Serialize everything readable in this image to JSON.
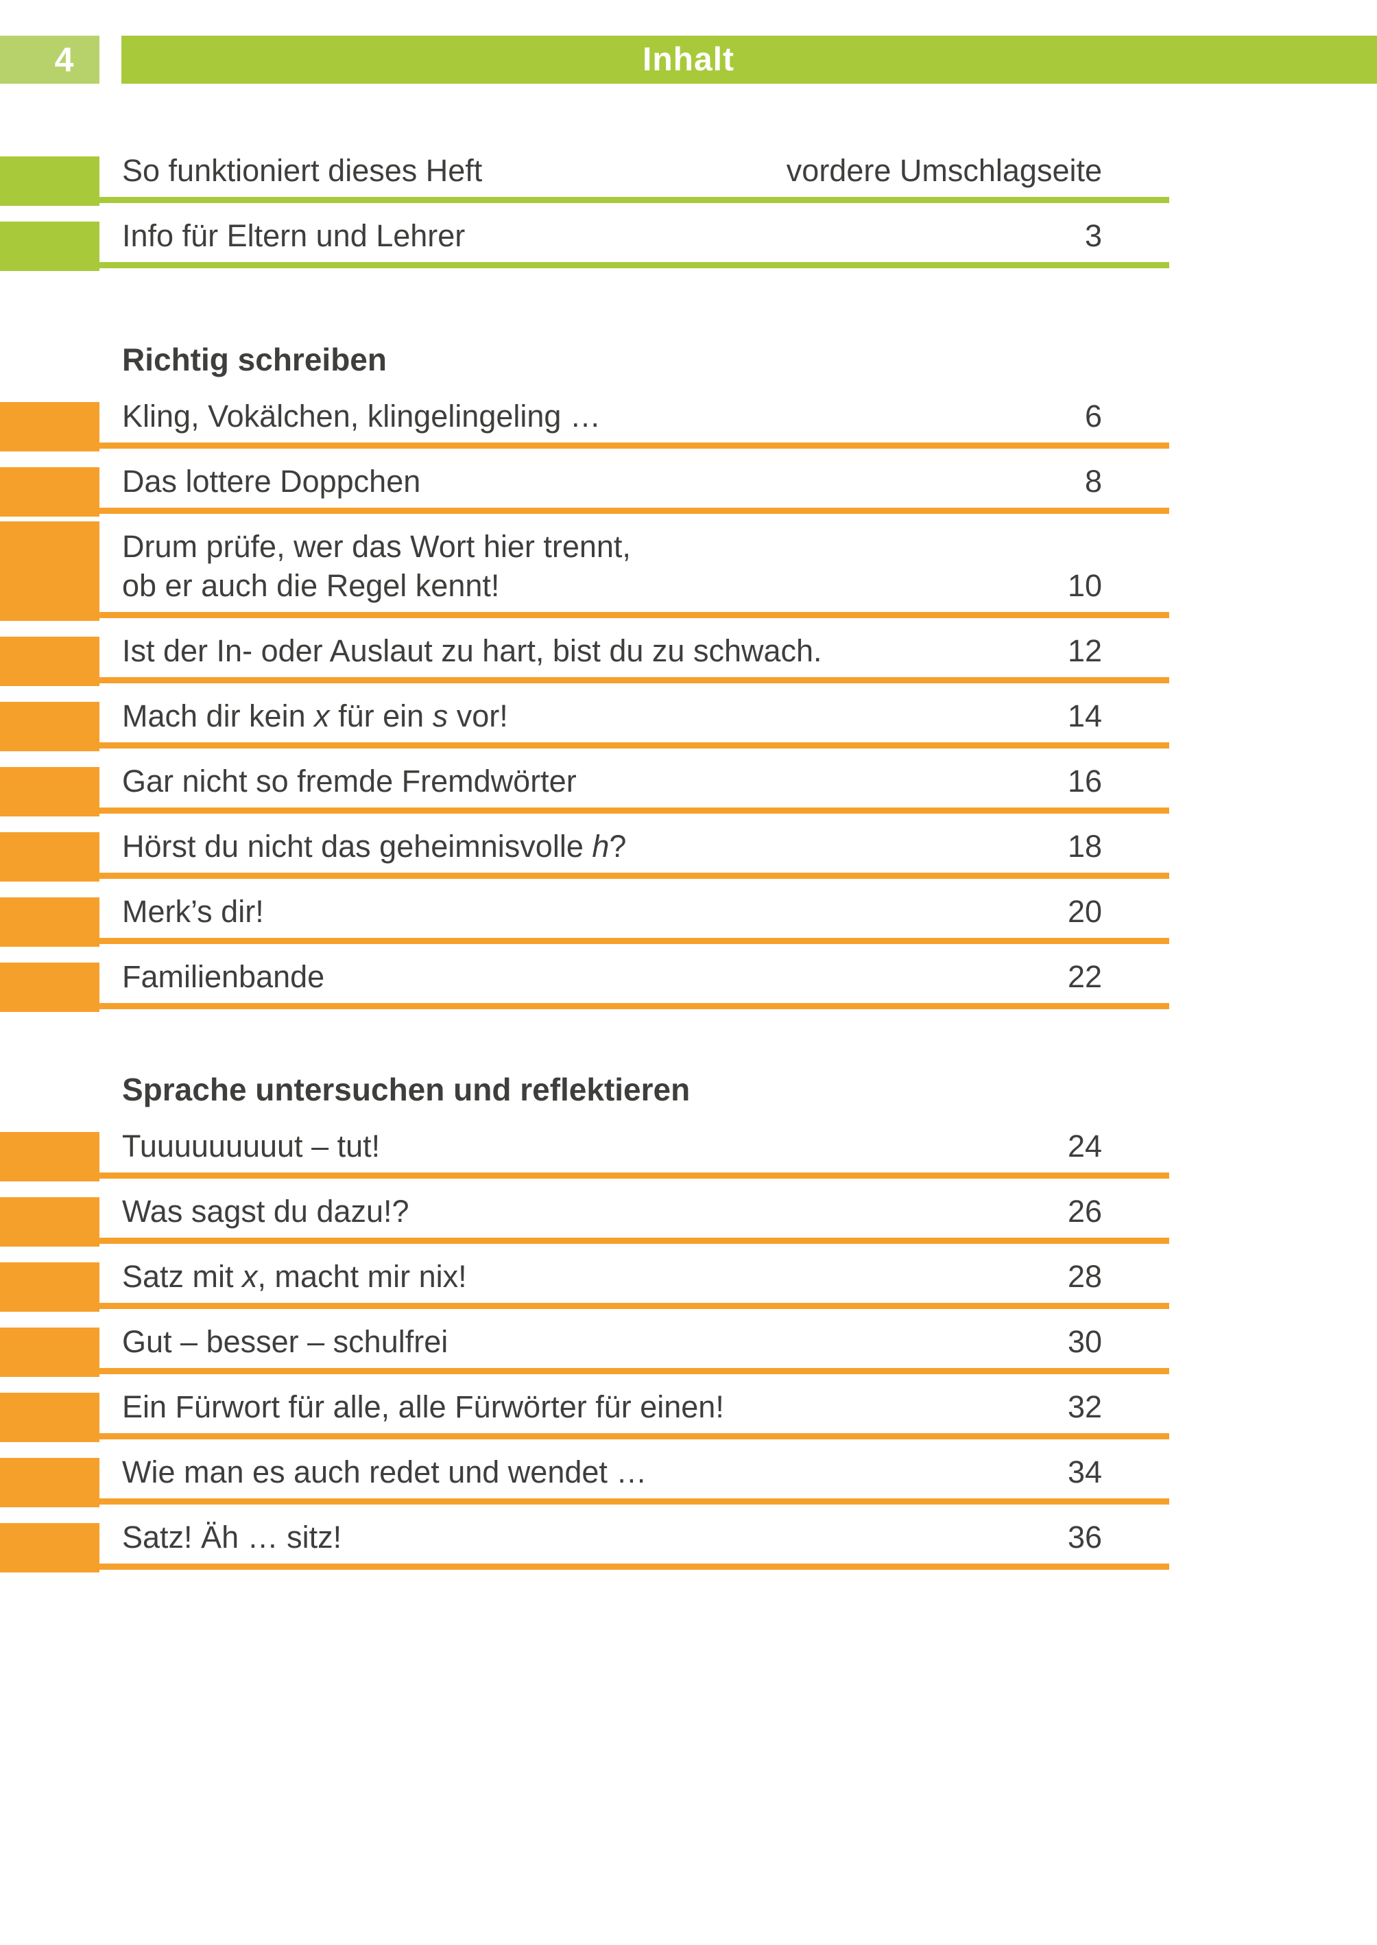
{
  "header": {
    "page_number": "4",
    "title": "Inhalt"
  },
  "colors": {
    "green": "#A8C93A",
    "light_green": "#B7D26A",
    "orange": "#F6A02C",
    "text": "#3E3E3C"
  },
  "toc": {
    "front_rows": [
      {
        "marker": "green",
        "lines": [
          [
            {
              "t": "So funktioniert dieses Heft"
            }
          ]
        ],
        "page": "vordere Umschlagseite"
      },
      {
        "marker": "green",
        "lines": [
          [
            {
              "t": "Info für Eltern und Lehrer"
            }
          ]
        ],
        "page": "3"
      }
    ],
    "sections": [
      {
        "heading": "Richtig schreiben",
        "rows": [
          {
            "marker": "orange",
            "lines": [
              [
                {
                  "t": "Kling, Vokälchen, klingelingeling …"
                }
              ]
            ],
            "page": "6"
          },
          {
            "marker": "orange",
            "lines": [
              [
                {
                  "t": "Das lottere Doppchen"
                }
              ]
            ],
            "page": "8"
          },
          {
            "marker": "orange",
            "lines": [
              [
                {
                  "t": "Drum prüfe, wer das Wort hier trennt,"
                }
              ],
              [
                {
                  "t": "ob er auch die Regel kennt!"
                }
              ]
            ],
            "page": "10"
          },
          {
            "marker": "orange",
            "lines": [
              [
                {
                  "t": "Ist der In- oder Auslaut zu hart, bist du zu schwach."
                }
              ]
            ],
            "page": "12"
          },
          {
            "marker": "orange",
            "lines": [
              [
                {
                  "t": "Mach dir kein "
                },
                {
                  "t": "x",
                  "i": true
                },
                {
                  "t": " für ein "
                },
                {
                  "t": "s",
                  "i": true
                },
                {
                  "t": " vor!"
                }
              ]
            ],
            "page": "14"
          },
          {
            "marker": "orange",
            "lines": [
              [
                {
                  "t": "Gar nicht so fremde Fremdwörter"
                }
              ]
            ],
            "page": "16"
          },
          {
            "marker": "orange",
            "lines": [
              [
                {
                  "t": "Hörst du nicht das geheimnisvolle "
                },
                {
                  "t": "h",
                  "i": true
                },
                {
                  "t": "?"
                }
              ]
            ],
            "page": "18"
          },
          {
            "marker": "orange",
            "lines": [
              [
                {
                  "t": "Merk’s dir!"
                }
              ]
            ],
            "page": "20"
          },
          {
            "marker": "orange",
            "lines": [
              [
                {
                  "t": "Familienbande"
                }
              ]
            ],
            "page": "22"
          }
        ]
      },
      {
        "heading": "Sprache untersuchen und reflektieren",
        "rows": [
          {
            "marker": "orange",
            "lines": [
              [
                {
                  "t": "Tuuuuuuuuut – tut!"
                }
              ]
            ],
            "page": "24"
          },
          {
            "marker": "orange",
            "lines": [
              [
                {
                  "t": "Was sagst du dazu!?"
                }
              ]
            ],
            "page": "26"
          },
          {
            "marker": "orange",
            "lines": [
              [
                {
                  "t": "Satz mit "
                },
                {
                  "t": "x",
                  "i": true
                },
                {
                  "t": ", macht mir nix!"
                }
              ]
            ],
            "page": "28"
          },
          {
            "marker": "orange",
            "lines": [
              [
                {
                  "t": "Gut – besser – schulfrei"
                }
              ]
            ],
            "page": "30"
          },
          {
            "marker": "orange",
            "lines": [
              [
                {
                  "t": "Ein Fürwort für alle, alle Fürwörter für einen!"
                }
              ]
            ],
            "page": "32"
          },
          {
            "marker": "orange",
            "lines": [
              [
                {
                  "t": "Wie man es auch redet und wendet …"
                }
              ]
            ],
            "page": "34"
          },
          {
            "marker": "orange",
            "lines": [
              [
                {
                  "t": "Satz! Äh … sitz!"
                }
              ]
            ],
            "page": "36"
          }
        ]
      }
    ]
  }
}
